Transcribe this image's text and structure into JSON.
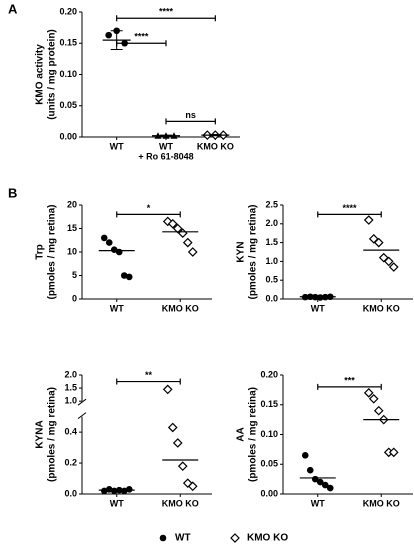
{
  "panel_labels": [
    "A",
    "B"
  ],
  "legend": [
    {
      "name": "WT",
      "marker": "circle"
    },
    {
      "name": "KMO KO",
      "marker": "diamond"
    }
  ],
  "chart_data": [
    {
      "type": "scatter",
      "ylabel": [
        "KMO activity",
        "(units / mg protein)"
      ],
      "ylim": [
        0,
        0.2
      ],
      "yticks": [
        {
          "value": 0,
          "label": "0.00"
        },
        {
          "value": 0.05,
          "label": "0.05"
        },
        {
          "value": 0.1,
          "label": "0.10"
        },
        {
          "value": 0.15,
          "label": "0.15"
        },
        {
          "value": 0.2,
          "label": "0.20"
        }
      ],
      "groups": [
        {
          "label": [
            "WT"
          ],
          "marker": "circle",
          "values": [
            0.163,
            0.17,
            0.15
          ],
          "mean": 0.155,
          "error": 0.015
        },
        {
          "label": [
            "WT",
            "+ Ro 61-8048"
          ],
          "marker": "triangle",
          "values": [
            0.002,
            0.002,
            0.002
          ],
          "mean": 0.002,
          "error": 0.001
        },
        {
          "label": [
            "KMO KO"
          ],
          "marker": "diamond",
          "values": [
            0.003,
            0.003,
            0.003
          ],
          "mean": 0.003,
          "error": 0.001
        }
      ],
      "brackets": [
        {
          "label": "****",
          "from": 0,
          "to": 2,
          "y": 0.19
        },
        {
          "label": "****",
          "from": 0,
          "to": 1,
          "y": 0.15
        },
        {
          "label": "ns",
          "from": 1,
          "to": 2,
          "y": 0.025
        }
      ]
    },
    {
      "type": "scatter",
      "ylabel": [
        "Trp",
        "(pmoles / mg retina)"
      ],
      "ylim": [
        0,
        20
      ],
      "yticks": [
        0,
        5,
        10,
        15,
        20
      ],
      "groups": [
        {
          "label": [
            "WT"
          ],
          "marker": "circle",
          "values": [
            13,
            12,
            10.5,
            10,
            5,
            4.7
          ],
          "mean": 10.3
        },
        {
          "label": [
            "KMO KO"
          ],
          "marker": "diamond",
          "values": [
            16.5,
            16,
            15,
            14,
            12,
            10
          ],
          "mean": 14.3
        }
      ],
      "brackets": [
        {
          "label": "*",
          "from": 0,
          "to": 1,
          "y": 18
        }
      ]
    },
    {
      "type": "scatter",
      "ylabel": [
        "KYN",
        "(pmoles / mg retina)"
      ],
      "ylim": [
        0,
        2.5
      ],
      "yticks": [
        {
          "value": 0,
          "label": "0.0"
        },
        0.5,
        {
          "value": 1,
          "label": "1.0"
        },
        1.5,
        {
          "value": 2,
          "label": "2.0"
        },
        2.5
      ],
      "groups": [
        {
          "label": [
            "WT"
          ],
          "marker": "circle",
          "values": [
            0.05,
            0.06,
            0.05,
            0.04,
            0.05,
            0.06
          ],
          "mean": 0.06
        },
        {
          "label": [
            "KMO KO"
          ],
          "marker": "diamond",
          "values": [
            2.1,
            1.6,
            1.5,
            1.1,
            1.0,
            0.85
          ],
          "mean": 1.3
        }
      ],
      "brackets": [
        {
          "label": "****",
          "from": 0,
          "to": 1,
          "y": 2.25
        }
      ]
    },
    {
      "type": "scatter",
      "ylabel": [
        "KYNA",
        "(pmoles / mg retina)"
      ],
      "ysegments": [
        [
          0,
          0.5
        ],
        [
          1,
          2
        ]
      ],
      "yticks": [
        {
          "value": 0,
          "label": "0.0"
        },
        0.2,
        0.4,
        {
          "value": 1,
          "label": "1.0"
        },
        1.5,
        {
          "value": 2,
          "label": "2.0"
        }
      ],
      "groups": [
        {
          "label": [
            "WT"
          ],
          "marker": "circle",
          "values": [
            0.02,
            0.03,
            0.02,
            0.025,
            0.02,
            0.03
          ],
          "mean": 0.025
        },
        {
          "label": [
            "KMO KO"
          ],
          "marker": "diamond",
          "values": [
            1.45,
            0.43,
            0.33,
            0.18,
            0.07,
            0.05
          ],
          "mean": 0.22
        }
      ],
      "brackets": [
        {
          "label": "**",
          "from": 0,
          "to": 1,
          "y": 1.75
        }
      ]
    },
    {
      "type": "scatter",
      "ylabel": [
        "AA",
        "(pmoles / mg retina)"
      ],
      "ylim": [
        0,
        0.2
      ],
      "yticks": [
        {
          "value": 0,
          "label": "0.00"
        },
        {
          "value": 0.05,
          "label": "0.05"
        },
        {
          "value": 0.1,
          "label": "0.10"
        },
        {
          "value": 0.15,
          "label": "0.15"
        },
        {
          "value": 0.2,
          "label": "0.20"
        }
      ],
      "groups": [
        {
          "label": [
            "WT"
          ],
          "marker": "circle",
          "values": [
            0.065,
            0.04,
            0.025,
            0.02,
            0.015,
            0.01
          ],
          "mean": 0.027
        },
        {
          "label": [
            "KMO KO"
          ],
          "marker": "diamond",
          "values": [
            0.17,
            0.16,
            0.14,
            0.125,
            0.07,
            0.07
          ],
          "mean": 0.125
        }
      ],
      "brackets": [
        {
          "label": "***",
          "from": 0,
          "to": 1,
          "y": 0.18
        }
      ]
    }
  ]
}
